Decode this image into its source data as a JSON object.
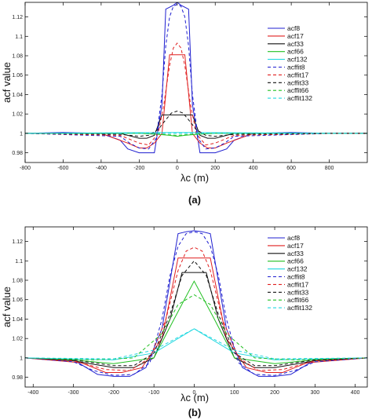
{
  "chart_data": [
    {
      "type": "line",
      "caption": "(a)",
      "xlabel": "λc (m)",
      "ylabel": "acf value",
      "xlim": [
        -800,
        1000
      ],
      "ylim": [
        0.97,
        1.135
      ],
      "xticks": [
        -800,
        -600,
        -400,
        -200,
        0,
        200,
        400,
        600,
        800
      ],
      "yticks": [
        0.98,
        1,
        1.02,
        1.04,
        1.06,
        1.08,
        1.1,
        1.12
      ],
      "grid": false,
      "legend_position": "top-right",
      "series": [
        {
          "name": "acf8",
          "color": "#1f1fd0",
          "dash": "solid",
          "x": [
            -800,
            -600,
            -400,
            -300,
            -260,
            -200,
            -160,
            -120,
            -80,
            -60,
            -40,
            -20,
            0,
            20,
            40,
            60,
            80,
            120,
            160,
            200,
            260,
            300,
            400,
            600,
            800,
            1000
          ],
          "y": [
            1.0,
            1.001,
            1.0,
            0.993,
            0.984,
            0.98,
            0.98,
            0.98,
            1.03,
            1.128,
            1.13,
            1.132,
            1.135,
            1.132,
            1.13,
            1.128,
            1.03,
            0.98,
            0.98,
            0.98,
            0.984,
            0.993,
            1.0,
            1.001,
            1.0,
            1.0
          ]
        },
        {
          "name": "acf17",
          "color": "#e02020",
          "dash": "solid",
          "x": [
            -800,
            -400,
            -260,
            -200,
            -160,
            -120,
            -80,
            -40,
            0,
            40,
            80,
            120,
            160,
            200,
            260,
            400,
            800,
            1000
          ],
          "y": [
            1.0,
            1.0,
            0.99,
            0.985,
            0.985,
            0.99,
            1.0,
            1.081,
            1.081,
            1.081,
            1.0,
            0.99,
            0.985,
            0.985,
            0.99,
            1.0,
            1.0,
            1.0
          ]
        },
        {
          "name": "acf33",
          "color": "#111111",
          "dash": "solid",
          "x": [
            -800,
            -300,
            -200,
            -160,
            -120,
            -80,
            -40,
            0,
            40,
            80,
            120,
            160,
            200,
            300,
            800,
            1000
          ],
          "y": [
            1.0,
            1.0,
            0.995,
            0.995,
            0.998,
            1.019,
            1.019,
            1.019,
            1.019,
            1.019,
            0.998,
            0.995,
            0.995,
            1.0,
            1.0,
            1.0
          ]
        },
        {
          "name": "acf66",
          "color": "#22c022",
          "dash": "solid",
          "x": [
            -800,
            -200,
            -100,
            -40,
            0,
            40,
            100,
            200,
            800,
            1000
          ],
          "y": [
            1.0,
            1.0,
            0.999,
            0.998,
            0.997,
            0.998,
            0.999,
            1.0,
            1.0,
            1.0
          ]
        },
        {
          "name": "acf132",
          "color": "#22d8e0",
          "dash": "solid",
          "x": [
            -800,
            0,
            1000
          ],
          "y": [
            1.0,
            1.001,
            1.0
          ]
        },
        {
          "name": "acffit8",
          "color": "#1f1fd0",
          "dash": "dashed",
          "x": [
            -800,
            -300,
            -250,
            -200,
            -150,
            -110,
            -80,
            -60,
            -40,
            -20,
            0,
            20,
            40,
            60,
            80,
            110,
            150,
            200,
            250,
            300,
            800,
            1000
          ],
          "y": [
            1.0,
            0.997,
            0.99,
            0.985,
            0.984,
            0.995,
            1.04,
            1.09,
            1.12,
            1.131,
            1.133,
            1.131,
            1.12,
            1.09,
            1.04,
            0.995,
            0.984,
            0.985,
            0.99,
            0.997,
            1.0,
            1.0
          ]
        },
        {
          "name": "acffit17",
          "color": "#e02020",
          "dash": "dashed",
          "x": [
            -800,
            -300,
            -200,
            -150,
            -100,
            -70,
            -40,
            -20,
            0,
            20,
            40,
            70,
            100,
            150,
            200,
            300,
            800,
            1000
          ],
          "y": [
            1.0,
            0.998,
            0.99,
            0.988,
            1.0,
            1.03,
            1.07,
            1.088,
            1.093,
            1.088,
            1.07,
            1.03,
            1.0,
            0.988,
            0.99,
            0.998,
            1.0,
            1.0
          ]
        },
        {
          "name": "acffit33",
          "color": "#111111",
          "dash": "dashed",
          "x": [
            -800,
            -300,
            -200,
            -150,
            -100,
            -60,
            -30,
            0,
            30,
            60,
            100,
            150,
            200,
            300,
            800,
            1000
          ],
          "y": [
            1.0,
            0.999,
            0.997,
            0.998,
            1.004,
            1.014,
            1.021,
            1.023,
            1.021,
            1.014,
            1.004,
            0.998,
            0.997,
            0.999,
            1.0,
            1.0
          ]
        },
        {
          "name": "acffit66",
          "color": "#22c022",
          "dash": "dashed",
          "x": [
            -800,
            -150,
            -80,
            0,
            80,
            150,
            800,
            1000
          ],
          "y": [
            1.0,
            1.0,
            0.999,
            0.998,
            0.999,
            1.0,
            1.0,
            1.0
          ]
        },
        {
          "name": "acffit132",
          "color": "#22d8e0",
          "dash": "dashed",
          "x": [
            -800,
            0,
            1000
          ],
          "y": [
            1.0,
            1.0,
            1.0
          ]
        }
      ]
    },
    {
      "type": "line",
      "caption": "(b)",
      "xlabel": "λc (m)",
      "ylabel": "acf value",
      "xlim": [
        -420,
        430
      ],
      "ylim": [
        0.97,
        1.135
      ],
      "xticks": [
        -400,
        -300,
        -200,
        -100,
        0,
        100,
        200,
        300,
        400
      ],
      "yticks": [
        0.98,
        1,
        1.02,
        1.04,
        1.06,
        1.08,
        1.1,
        1.12
      ],
      "grid": false,
      "legend_position": "top-right",
      "series": [
        {
          "name": "acf8",
          "color": "#1f1fd0",
          "dash": "solid",
          "x": [
            -420,
            -300,
            -240,
            -200,
            -160,
            -120,
            -80,
            -40,
            -20,
            0,
            20,
            40,
            80,
            120,
            160,
            200,
            240,
            300,
            430
          ],
          "y": [
            1.0,
            0.998,
            0.983,
            0.981,
            0.981,
            0.99,
            1.03,
            1.128,
            1.13,
            1.131,
            1.13,
            1.128,
            1.03,
            0.99,
            0.981,
            0.981,
            0.983,
            0.998,
            1.0
          ]
        },
        {
          "name": "acf17",
          "color": "#e02020",
          "dash": "solid",
          "x": [
            -420,
            -280,
            -220,
            -180,
            -130,
            -80,
            -40,
            0,
            40,
            80,
            130,
            180,
            220,
            280,
            430
          ],
          "y": [
            1.0,
            0.995,
            0.985,
            0.985,
            0.99,
            1.02,
            1.103,
            1.103,
            1.103,
            1.02,
            0.99,
            0.985,
            0.985,
            0.995,
            1.0
          ]
        },
        {
          "name": "acf33",
          "color": "#111111",
          "dash": "solid",
          "x": [
            -420,
            -300,
            -200,
            -150,
            -100,
            -60,
            -30,
            0,
            30,
            60,
            100,
            150,
            200,
            300,
            430
          ],
          "y": [
            1.0,
            0.997,
            0.99,
            0.99,
            1.0,
            1.04,
            1.088,
            1.088,
            1.088,
            1.04,
            1.0,
            0.99,
            0.99,
            0.997,
            1.0
          ]
        },
        {
          "name": "acf66",
          "color": "#22c022",
          "dash": "solid",
          "x": [
            -420,
            -300,
            -200,
            -100,
            -50,
            0,
            50,
            100,
            200,
            300,
            430
          ],
          "y": [
            1.0,
            0.998,
            0.994,
            1.0,
            1.04,
            1.079,
            1.04,
            1.0,
            0.994,
            0.998,
            1.0
          ]
        },
        {
          "name": "acf132",
          "color": "#22d8e0",
          "dash": "solid",
          "x": [
            -420,
            -200,
            -100,
            0,
            100,
            200,
            430
          ],
          "y": [
            1.0,
            0.998,
            1.005,
            1.03,
            1.005,
            0.998,
            1.0
          ]
        },
        {
          "name": "acffit8",
          "color": "#1f1fd0",
          "dash": "dashed",
          "x": [
            -420,
            -300,
            -250,
            -200,
            -150,
            -110,
            -80,
            -60,
            -40,
            -20,
            0,
            20,
            40,
            60,
            80,
            110,
            150,
            200,
            250,
            300,
            430
          ],
          "y": [
            1.0,
            0.996,
            0.987,
            0.982,
            0.983,
            0.995,
            1.04,
            1.085,
            1.115,
            1.128,
            1.13,
            1.128,
            1.115,
            1.085,
            1.04,
            0.995,
            0.983,
            0.982,
            0.987,
            0.996,
            1.0
          ]
        },
        {
          "name": "acffit17",
          "color": "#e02020",
          "dash": "dashed",
          "x": [
            -420,
            -300,
            -220,
            -160,
            -110,
            -70,
            -40,
            -20,
            0,
            20,
            40,
            70,
            110,
            160,
            220,
            300,
            430
          ],
          "y": [
            1.0,
            0.997,
            0.988,
            0.987,
            1.0,
            1.04,
            1.09,
            1.11,
            1.114,
            1.11,
            1.09,
            1.04,
            1.0,
            0.987,
            0.988,
            0.997,
            1.0
          ]
        },
        {
          "name": "acffit33",
          "color": "#111111",
          "dash": "dashed",
          "x": [
            -420,
            -300,
            -200,
            -150,
            -100,
            -60,
            -30,
            0,
            30,
            60,
            100,
            150,
            200,
            300,
            430
          ],
          "y": [
            1.0,
            0.998,
            0.992,
            0.992,
            1.005,
            1.045,
            1.085,
            1.1,
            1.085,
            1.045,
            1.005,
            0.992,
            0.992,
            0.998,
            1.0
          ]
        },
        {
          "name": "acffit66",
          "color": "#22c022",
          "dash": "dashed",
          "x": [
            -420,
            -250,
            -150,
            -80,
            -40,
            0,
            40,
            80,
            150,
            250,
            430
          ],
          "y": [
            1.0,
            0.998,
            1.0,
            1.025,
            1.055,
            1.065,
            1.055,
            1.025,
            1.0,
            0.998,
            1.0
          ]
        },
        {
          "name": "acffit132",
          "color": "#22d8e0",
          "dash": "dashed",
          "x": [
            -420,
            -200,
            -100,
            0,
            100,
            200,
            430
          ],
          "y": [
            1.0,
            0.999,
            1.008,
            1.03,
            1.008,
            0.999,
            1.0
          ]
        }
      ]
    }
  ]
}
